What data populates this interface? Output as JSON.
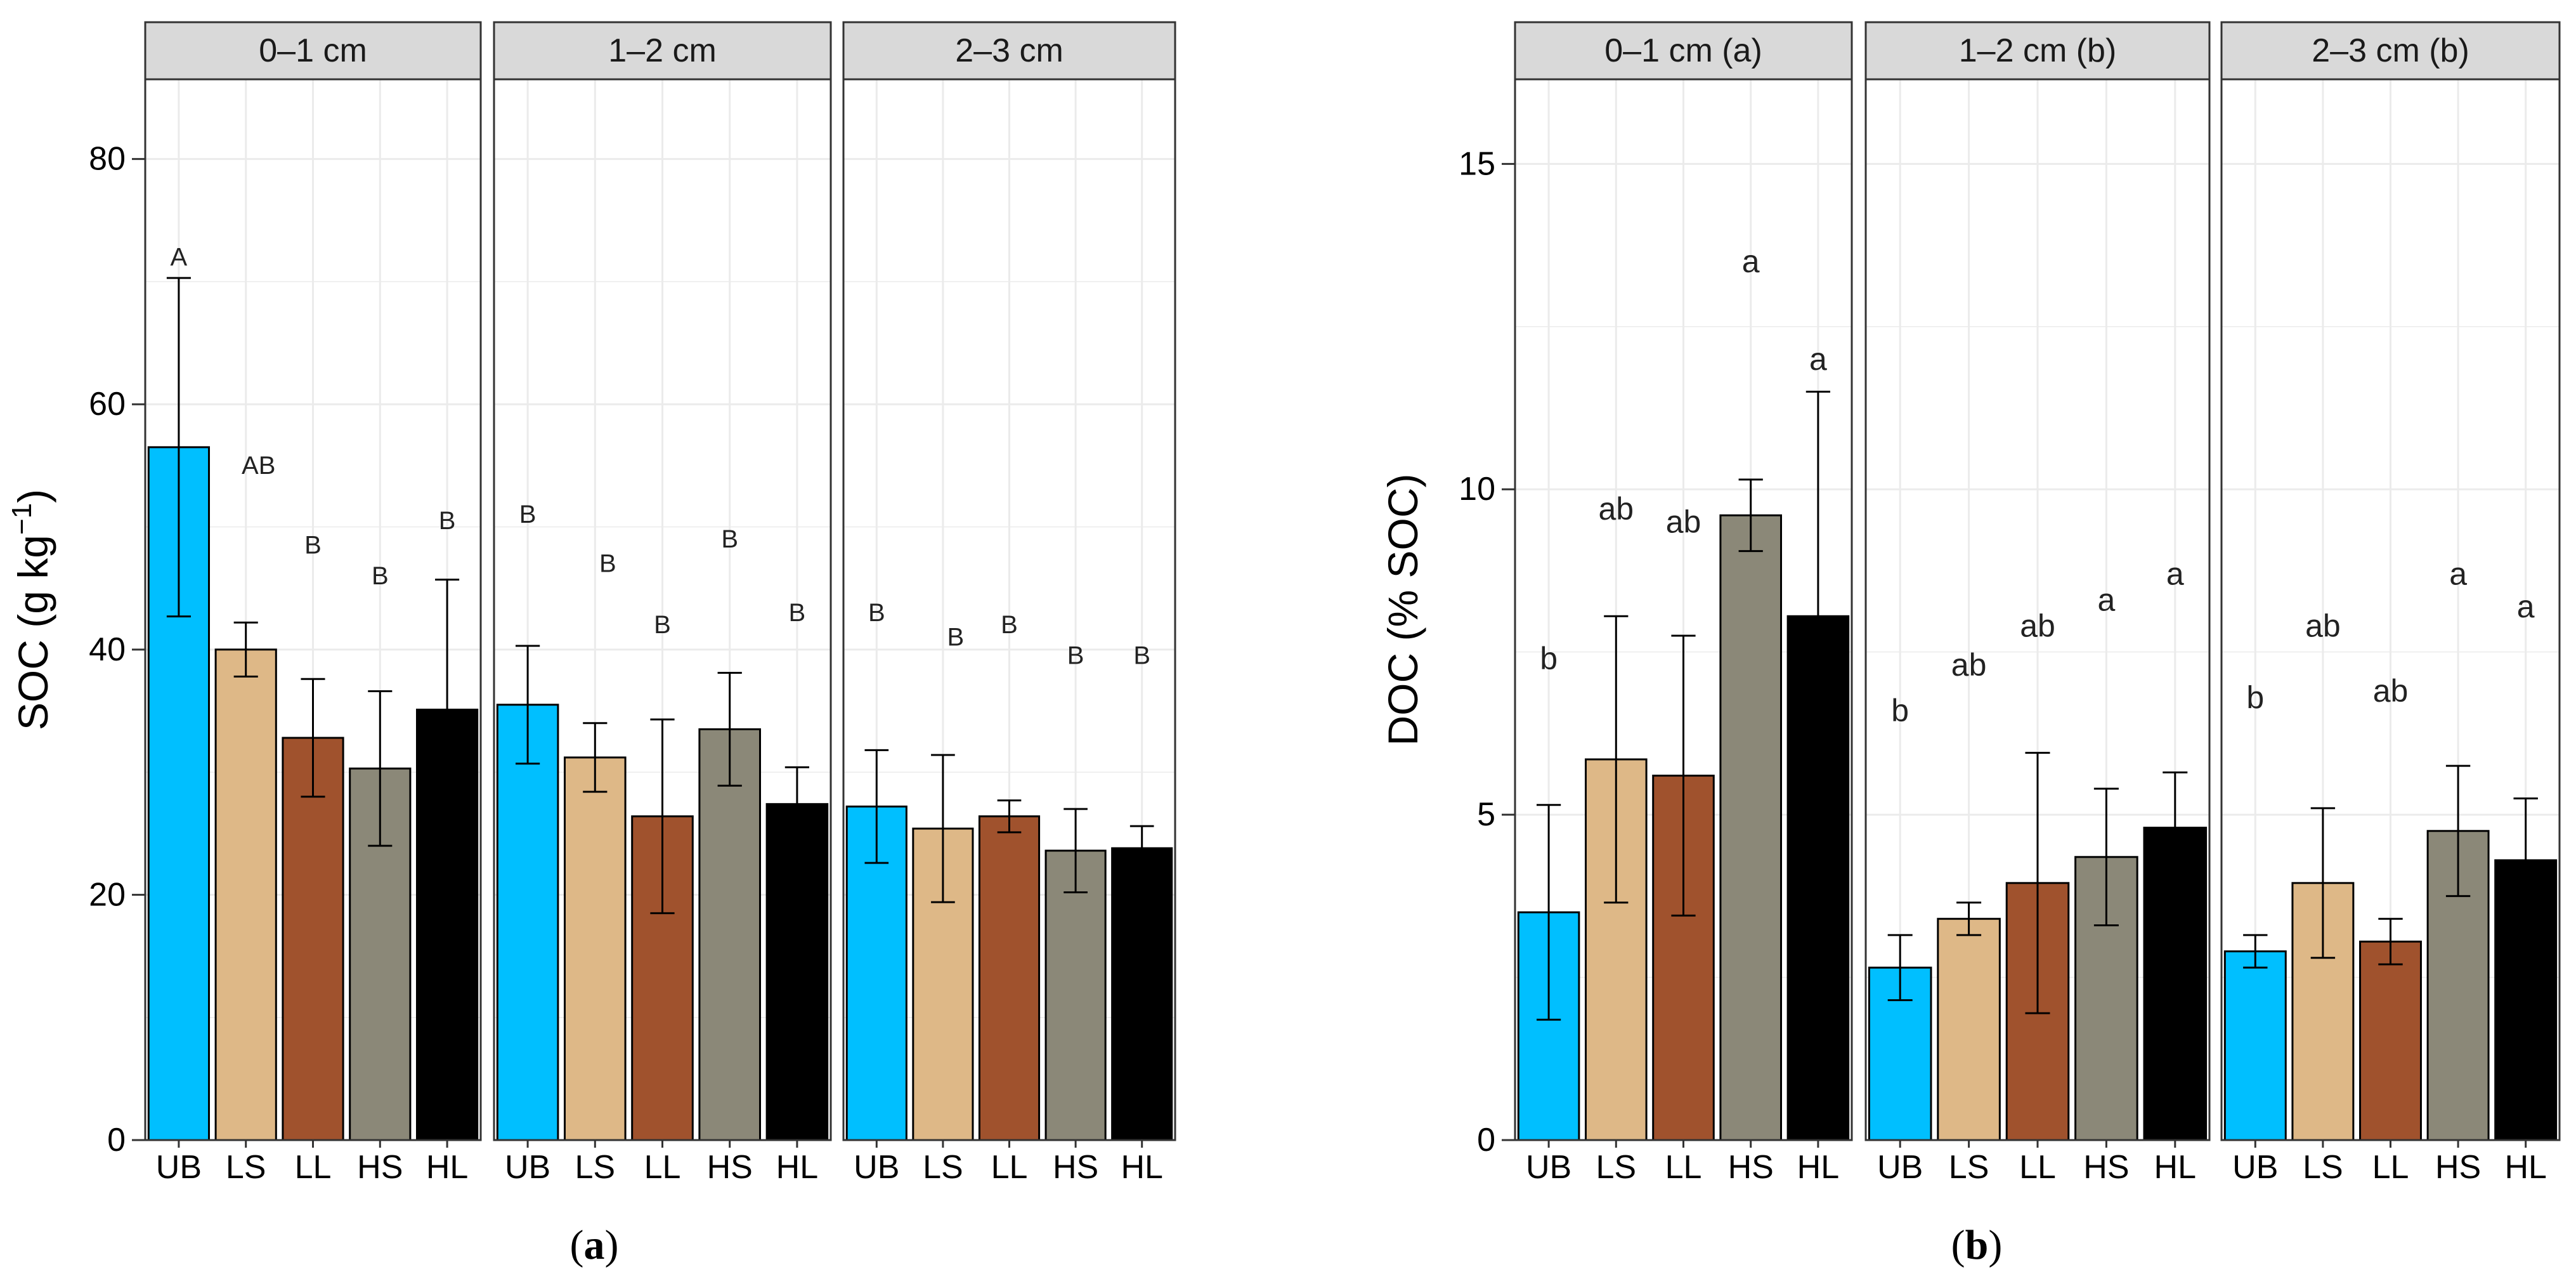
{
  "colors": {
    "UB": "#00BFFF",
    "LS": "#DEB887",
    "LL": "#A0522D",
    "HS": "#8B8878",
    "HL": "#000000",
    "strip_bg": "#D9D9D9",
    "grid": "#EBEBEB"
  },
  "chart_data": [
    {
      "type": "bar",
      "panel_label": "a",
      "ylabel": "SOC (g kg",
      "ylabel_superscript": "−1",
      "ylabel_close": ")",
      "ylim": [
        0,
        86.5
      ],
      "yticks": [
        0,
        20,
        40,
        60,
        80
      ],
      "grid": true,
      "categories": [
        "UB",
        "LS",
        "LL",
        "HS",
        "HL"
      ],
      "facets": [
        {
          "strip": "0–1 cm",
          "values": [
            56.5,
            40,
            32.8,
            30.3,
            35.1
          ],
          "errors": [
            13.8,
            2.2,
            4.8,
            6.3,
            10.6
          ],
          "letters": [
            "A",
            "AB",
            "B",
            "B",
            "B"
          ],
          "letter_y": [
            72,
            55,
            48.5,
            46,
            50.5
          ]
        },
        {
          "strip": "1–2 cm",
          "values": [
            35.5,
            31.2,
            26.4,
            33.5,
            27.4
          ],
          "errors": [
            4.8,
            2.8,
            7.9,
            4.6,
            3.0
          ],
          "letters": [
            "B",
            "B",
            "B",
            "B",
            "B"
          ],
          "letter_y": [
            51,
            47,
            42,
            49,
            43
          ]
        },
        {
          "strip": "2–3 cm",
          "values": [
            27.2,
            25.4,
            26.4,
            23.6,
            23.8
          ],
          "errors": [
            4.6,
            6.0,
            1.3,
            3.4,
            1.8
          ],
          "letters": [
            "B",
            "B",
            "B",
            "B",
            "B"
          ],
          "letter_y": [
            43,
            41,
            42,
            39.5,
            39.5
          ]
        }
      ]
    },
    {
      "type": "bar",
      "panel_label": "b",
      "ylabel": "DOC (% SOC)",
      "ylim": [
        0,
        16.3
      ],
      "yticks": [
        0,
        5,
        10,
        15
      ],
      "grid": true,
      "categories": [
        "UB",
        "LS",
        "LL",
        "HS",
        "HL"
      ],
      "facets": [
        {
          "strip": "0–1 cm (a)",
          "values": [
            3.5,
            5.85,
            5.6,
            9.6,
            8.05
          ],
          "errors": [
            1.65,
            2.2,
            2.15,
            0.55,
            3.45
          ],
          "letters": [
            "b",
            "ab",
            "ab",
            "a",
            "a"
          ],
          "letter_y": [
            7.4,
            9.7,
            9.5,
            13.5,
            12
          ]
        },
        {
          "strip": "1–2 cm (b)",
          "values": [
            2.65,
            3.4,
            3.95,
            4.35,
            4.8
          ],
          "errors": [
            0.5,
            0.25,
            2.0,
            1.05,
            0.85
          ],
          "letters": [
            "b",
            "ab",
            "ab",
            "a",
            "a"
          ],
          "letter_y": [
            6.6,
            7.3,
            7.9,
            8.3,
            8.7
          ]
        },
        {
          "strip": "2–3 cm (b)",
          "values": [
            2.9,
            3.95,
            3.05,
            4.75,
            4.3
          ],
          "errors": [
            0.25,
            1.15,
            0.35,
            1.0,
            0.95
          ],
          "letters": [
            "b",
            "ab",
            "ab",
            "a",
            "a"
          ],
          "letter_y": [
            6.8,
            7.9,
            6.9,
            8.7,
            8.2
          ]
        }
      ]
    }
  ]
}
